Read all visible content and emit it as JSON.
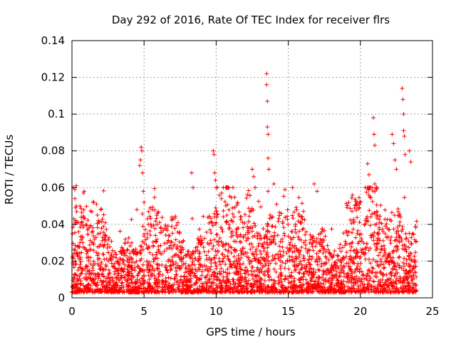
{
  "chart_data": {
    "type": "scatter",
    "title": "Day 292 of 2016, Rate Of TEC Index for receiver flrs",
    "xlabel": "GPS time / hours",
    "ylabel": "ROTI / TECUs",
    "xlim": [
      0,
      25
    ],
    "ylim": [
      0,
      0.14
    ],
    "xticks": [
      0,
      5,
      10,
      15,
      20,
      25
    ],
    "xtick_labels": [
      "0",
      "5",
      "10",
      "15",
      "20",
      "25"
    ],
    "yticks": [
      0,
      0.02,
      0.04,
      0.06,
      0.08,
      0.1,
      0.12,
      0.14
    ],
    "ytick_labels": [
      "0",
      "0.02",
      "0.04",
      "0.06",
      "0.08",
      "0.1",
      "0.12",
      "0.14"
    ],
    "grid": true,
    "marker": "+",
    "color": "#ff0000",
    "series": [
      {
        "name": "ROTI",
        "x": [
          0.1,
          0.2,
          0.2,
          0.25,
          0.3,
          0.3,
          0.8,
          0.85,
          1.5,
          1.7,
          2.0,
          4.5,
          4.7,
          4.75,
          4.8,
          4.85,
          4.9,
          4.95,
          5.0,
          8.3,
          8.4,
          9.8,
          9.85,
          9.9,
          9.95,
          10.0,
          12.5,
          12.6,
          12.7,
          13.5,
          13.5,
          13.55,
          13.55,
          13.6,
          13.6,
          13.65,
          13.6,
          14.0,
          16.8,
          17.0,
          20.5,
          20.6,
          20.9,
          20.95,
          21.0,
          21.0,
          22.2,
          22.3,
          22.4,
          22.5,
          22.9,
          22.95,
          23.0,
          23.0,
          23.05,
          23.1,
          23.4,
          23.5
        ],
        "y": [
          0.06,
          0.059,
          0.054,
          0.049,
          0.061,
          0.05,
          0.057,
          0.058,
          0.052,
          0.051,
          0.048,
          0.048,
          0.072,
          0.075,
          0.082,
          0.08,
          0.068,
          0.058,
          0.052,
          0.068,
          0.06,
          0.08,
          0.078,
          0.068,
          0.064,
          0.06,
          0.07,
          0.066,
          0.06,
          0.122,
          0.116,
          0.107,
          0.093,
          0.089,
          0.076,
          0.07,
          0.058,
          0.062,
          0.062,
          0.058,
          0.073,
          0.067,
          0.098,
          0.089,
          0.083,
          0.062,
          0.089,
          0.084,
          0.075,
          0.07,
          0.114,
          0.108,
          0.1,
          0.091,
          0.088,
          0.078,
          0.08,
          0.074
        ]
      }
    ]
  }
}
